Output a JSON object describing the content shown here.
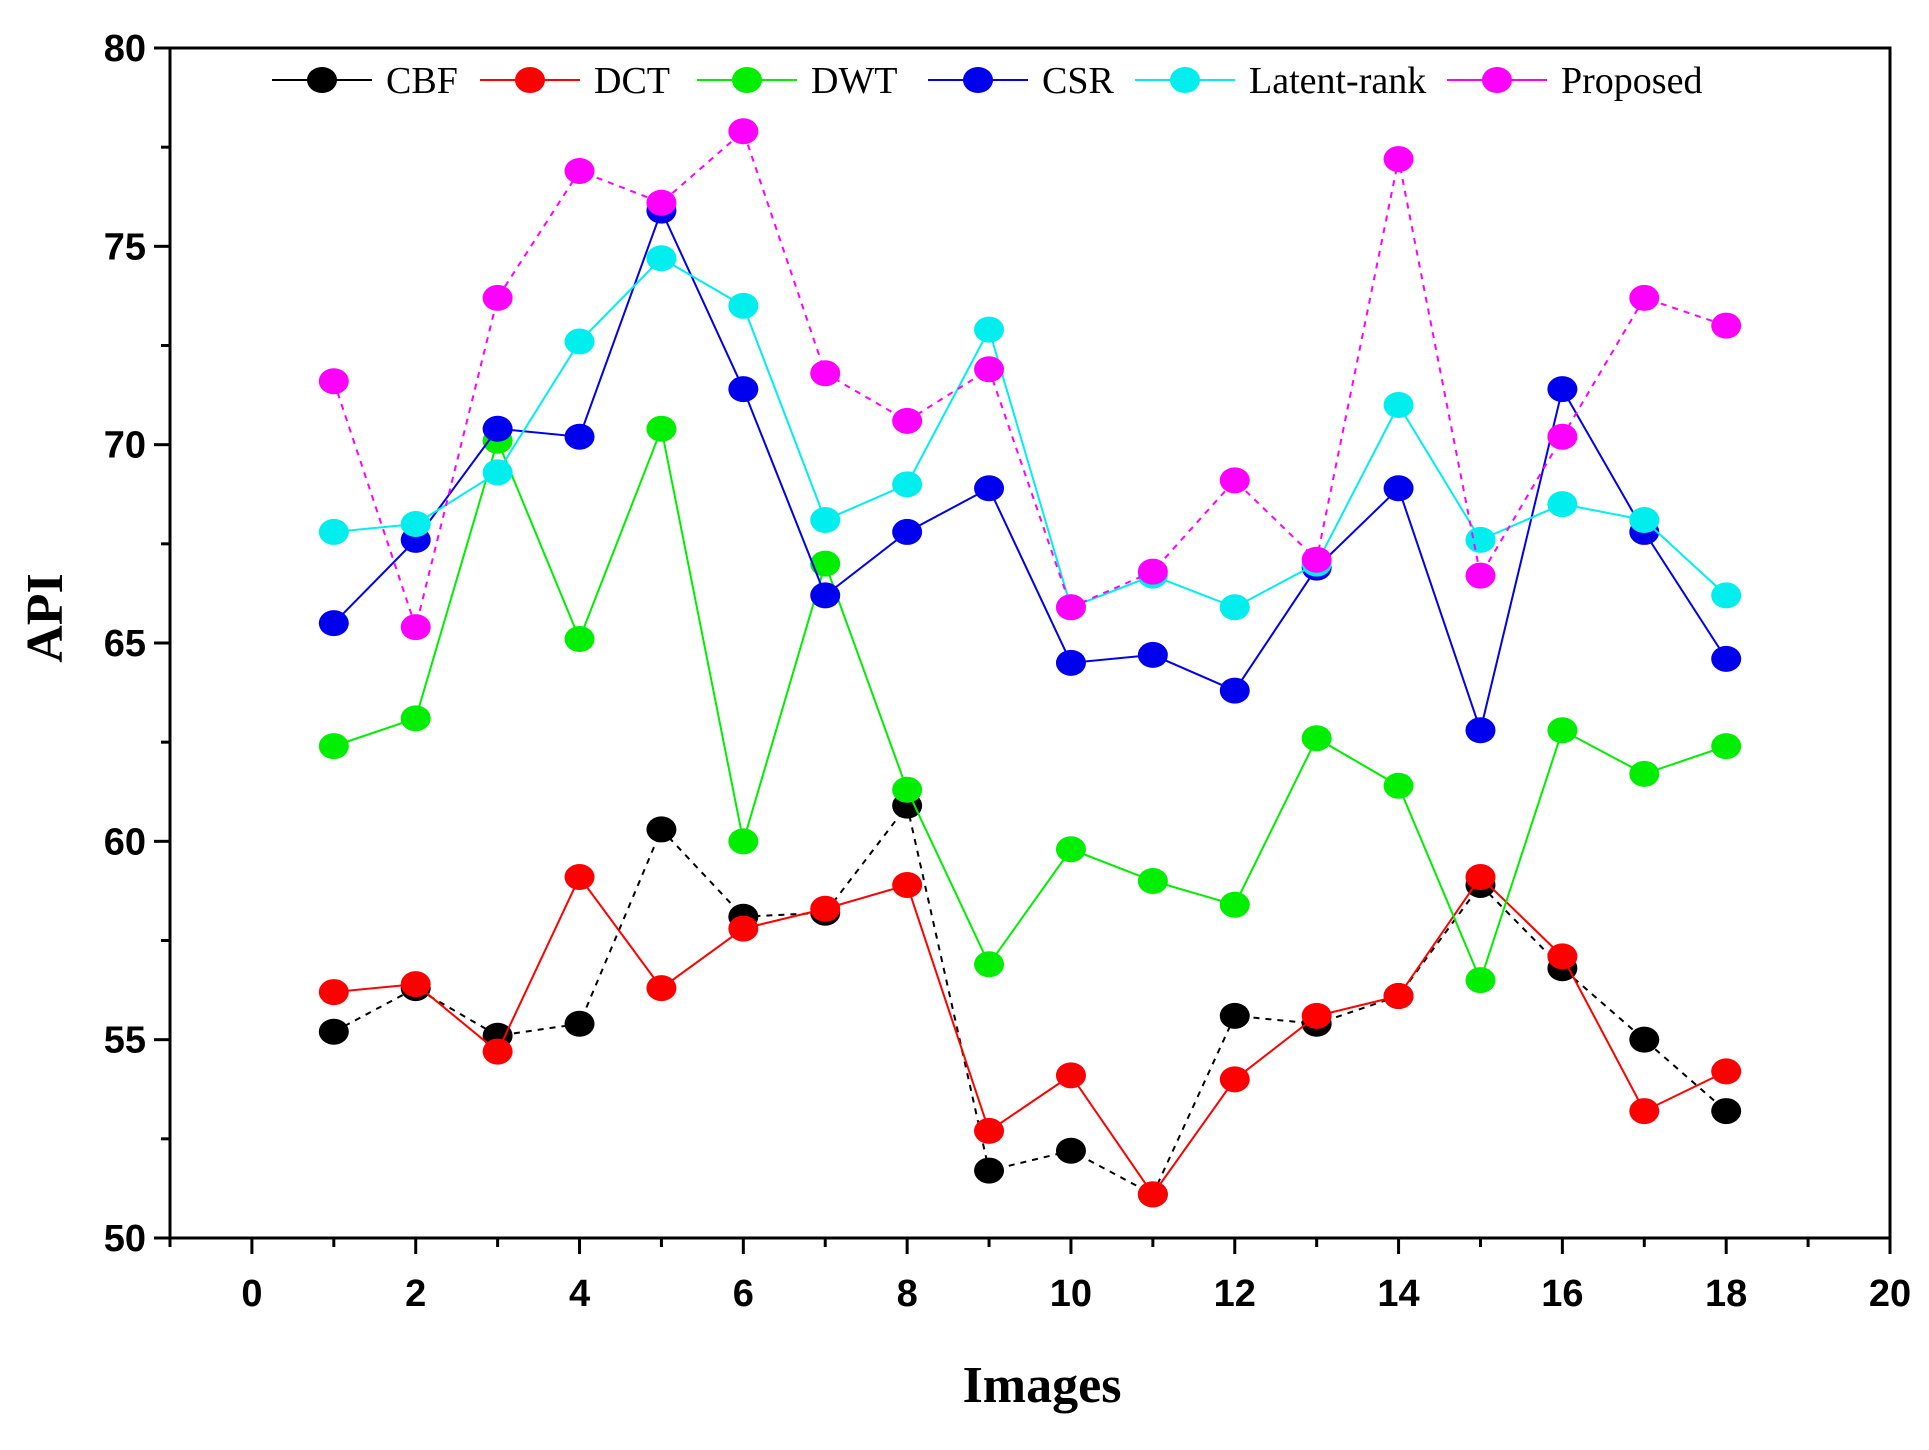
{
  "chart_data": {
    "type": "line",
    "title": "",
    "xlabel": "Images",
    "ylabel": "API",
    "xlim": [
      -1,
      20
    ],
    "ylim": [
      50,
      80
    ],
    "xticks": [
      0,
      2,
      4,
      6,
      8,
      10,
      12,
      14,
      16,
      18,
      20
    ],
    "yticks": [
      50,
      55,
      60,
      65,
      70,
      75,
      80
    ],
    "x": [
      1,
      2,
      3,
      4,
      5,
      6,
      7,
      8,
      9,
      10,
      11,
      12,
      13,
      14,
      15,
      16,
      17,
      18
    ],
    "legend_position": "top",
    "grid": false,
    "series": [
      {
        "name": "CBF",
        "color": "#000000",
        "dash": "6,6",
        "values": [
          55.2,
          56.3,
          55.1,
          55.4,
          60.3,
          58.1,
          58.2,
          60.9,
          51.7,
          52.2,
          51.1,
          55.6,
          55.4,
          56.1,
          58.9,
          56.8,
          55.0,
          53.2
        ]
      },
      {
        "name": "DCT",
        "color": "#ff0000",
        "dash": "none",
        "values": [
          56.2,
          56.4,
          54.7,
          59.1,
          56.3,
          57.8,
          58.3,
          58.9,
          52.7,
          54.1,
          51.1,
          54.0,
          55.6,
          56.1,
          59.1,
          57.1,
          53.2,
          54.2
        ]
      },
      {
        "name": "DWT",
        "color": "#00ee00",
        "dash": "none",
        "values": [
          62.4,
          63.1,
          70.1,
          65.1,
          70.4,
          60.0,
          67.0,
          61.3,
          56.9,
          59.8,
          59.0,
          58.4,
          62.6,
          61.4,
          56.5,
          62.8,
          61.7,
          62.4
        ]
      },
      {
        "name": "CSR",
        "color": "#0000ee",
        "dash": "none",
        "values": [
          65.5,
          67.6,
          70.4,
          70.2,
          75.9,
          71.4,
          66.2,
          67.8,
          68.9,
          64.5,
          64.7,
          63.8,
          66.9,
          68.9,
          62.8,
          71.4,
          67.8,
          64.6
        ]
      },
      {
        "name": "Latent-rank",
        "color": "#00eeee",
        "dash": "none",
        "values": [
          67.8,
          68.0,
          69.3,
          72.6,
          74.7,
          73.5,
          68.1,
          69.0,
          72.9,
          65.9,
          66.7,
          65.9,
          67.0,
          71.0,
          67.6,
          68.5,
          68.1,
          66.2
        ]
      },
      {
        "name": "Proposed",
        "color": "#ff00ff",
        "dash": "6,6",
        "values": [
          71.6,
          65.4,
          73.7,
          76.9,
          76.1,
          77.9,
          71.8,
          70.6,
          71.9,
          65.9,
          66.8,
          69.1,
          67.1,
          77.2,
          66.7,
          70.2,
          73.7,
          73.0
        ]
      }
    ]
  }
}
